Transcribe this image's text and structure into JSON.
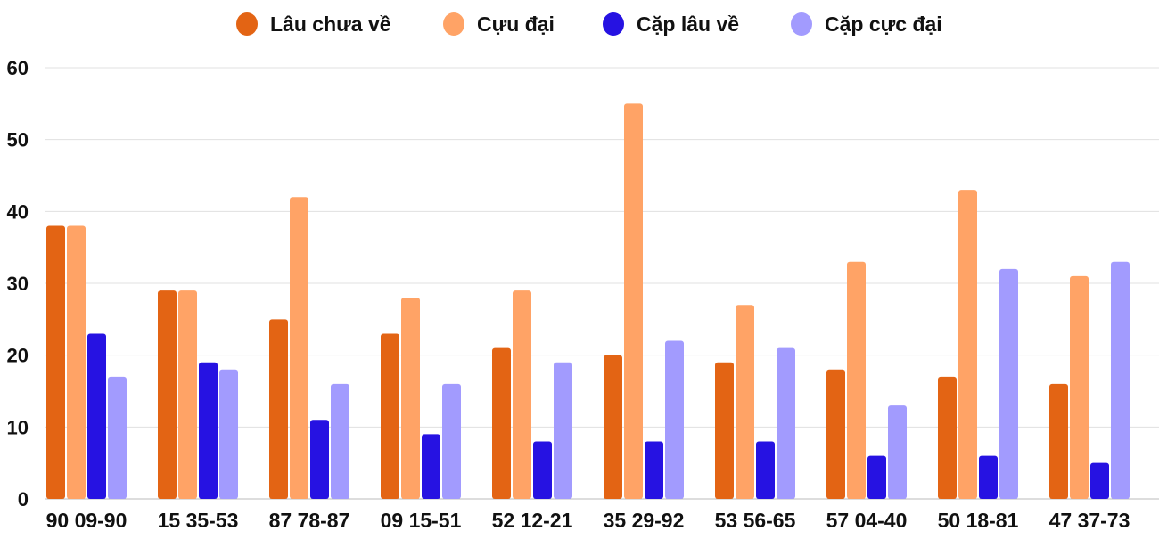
{
  "chart_data": {
    "type": "bar",
    "title": "",
    "xlabel": "",
    "ylabel": "",
    "ylim": [
      0,
      60
    ],
    "yticks": [
      0,
      10,
      20,
      30,
      40,
      50,
      60
    ],
    "grid": true,
    "legend_position": "top",
    "categories": [
      "90 09-90",
      "15 35-53",
      "87 78-87",
      "09 15-51",
      "52 12-21",
      "35 29-92",
      "53 56-65",
      "57 04-40",
      "50 18-81",
      "47 37-73"
    ],
    "series": [
      {
        "name": "Lâu chưa về",
        "color": "#e36414",
        "values": [
          38,
          29,
          25,
          23,
          21,
          20,
          19,
          18,
          17,
          16
        ]
      },
      {
        "name": "Cựu đại",
        "color": "#ffa366",
        "values": [
          38,
          29,
          42,
          28,
          29,
          55,
          27,
          33,
          43,
          31
        ]
      },
      {
        "name": "Cặp lâu về",
        "color": "#2612e2",
        "values": [
          23,
          19,
          11,
          9,
          8,
          8,
          8,
          6,
          6,
          5
        ]
      },
      {
        "name": "Cặp cực đại",
        "color": "#a29bfe",
        "values": [
          17,
          18,
          16,
          16,
          19,
          22,
          21,
          13,
          32,
          33
        ]
      }
    ]
  }
}
